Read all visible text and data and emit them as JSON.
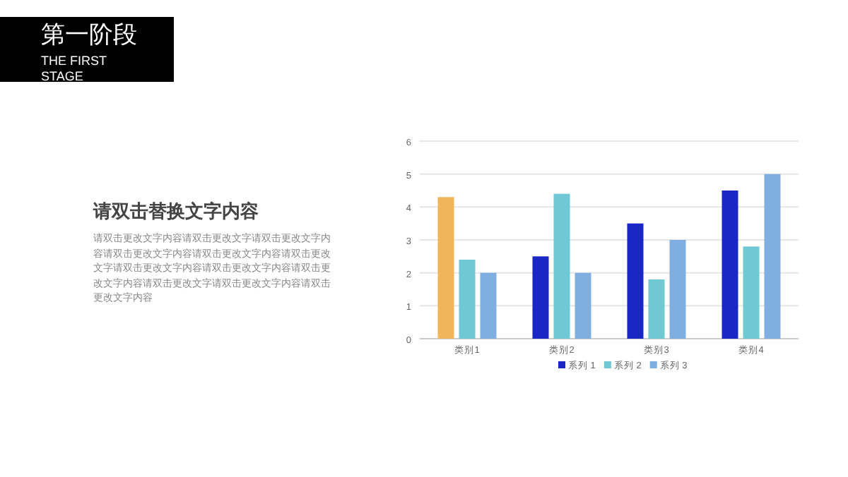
{
  "chart_data": {
    "type": "bar",
    "title": "第一阶段",
    "subtitle": "THE FIRST STAGE",
    "annotations": [
      "请双击替换文字内容",
      "请双击更改文字内容请双击更改文字请双击更改文字内容请双击更改文字内容请双击更改文字内容请双击更改文字请双击更改文字内容请双击更改文字内容请双击更改文字内容请双击更改文字请双击更改文字内容请双击更改文字内容"
    ],
    "categories": [
      "类别1",
      "类别2",
      "类别3",
      "类别4"
    ],
    "series": [
      {
        "name": "系列 1",
        "color": "#1a27c4",
        "colors": [
          "#f0b55a",
          "#1a27c4",
          "#1a27c4",
          "#1a27c4"
        ],
        "values": [
          4.3,
          2.5,
          3.5,
          4.5
        ]
      },
      {
        "name": "系列 2",
        "color": "#6fc8d4",
        "values": [
          2.4,
          4.4,
          1.8,
          2.8
        ]
      },
      {
        "name": "系列 3",
        "color": "#80aee0",
        "values": [
          2,
          2,
          3,
          5
        ]
      }
    ],
    "ylim": [
      0,
      6
    ],
    "yticks": [
      0,
      1,
      2,
      3,
      4,
      5,
      6
    ],
    "grid": "y",
    "legend": "bottom"
  }
}
